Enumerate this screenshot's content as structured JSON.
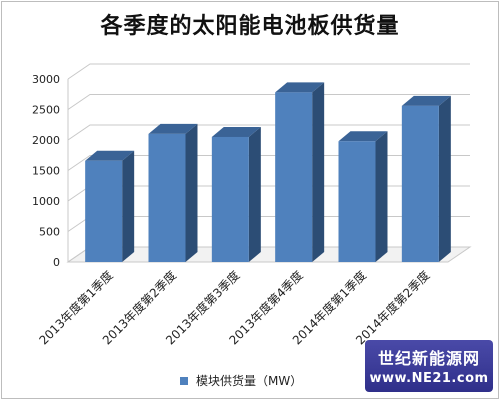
{
  "chart_data": {
    "type": "bar",
    "title": "各季度的太阳能电池板供货量",
    "categories": [
      "2013年度第1季度",
      "2013年度第2季度",
      "2013年度第3季度",
      "2013年度第4季度",
      "2014年度第1季度",
      "2014年度第2季度"
    ],
    "series": [
      {
        "name": "模块供货量（MW）",
        "values": [
          1660,
          2100,
          2050,
          2780,
          1980,
          2560
        ]
      }
    ],
    "ylim": [
      0,
      3000
    ],
    "yticks": [
      0,
      500,
      1000,
      1500,
      2000,
      2500,
      3000
    ],
    "grid": true,
    "legend": "bottom",
    "colors": {
      "front": "#4f81bd",
      "side": "#2c4d75",
      "top": "#3a6396",
      "grid": "#c8c8c8"
    }
  },
  "watermark": {
    "line1": "世纪新能源网",
    "line2": "www.NE21.com"
  }
}
